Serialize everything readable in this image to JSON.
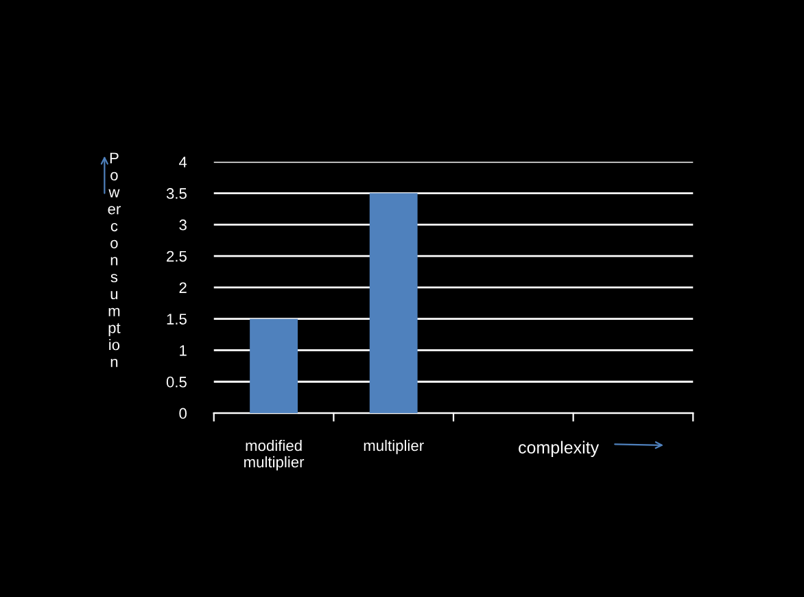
{
  "chart_data": {
    "type": "bar",
    "categories": [
      "modified\nmultiplier",
      "multiplier",
      null,
      null
    ],
    "values": [
      1.5,
      3.5,
      null,
      null
    ],
    "color": "#4f81bd",
    "ylabel": "Power consumption",
    "xlabel": "complexity",
    "ylim": [
      0,
      4
    ],
    "yticks": [
      0,
      0.5,
      1,
      1.5,
      2,
      2.5,
      3,
      3.5,
      4
    ],
    "grid": "y"
  }
}
